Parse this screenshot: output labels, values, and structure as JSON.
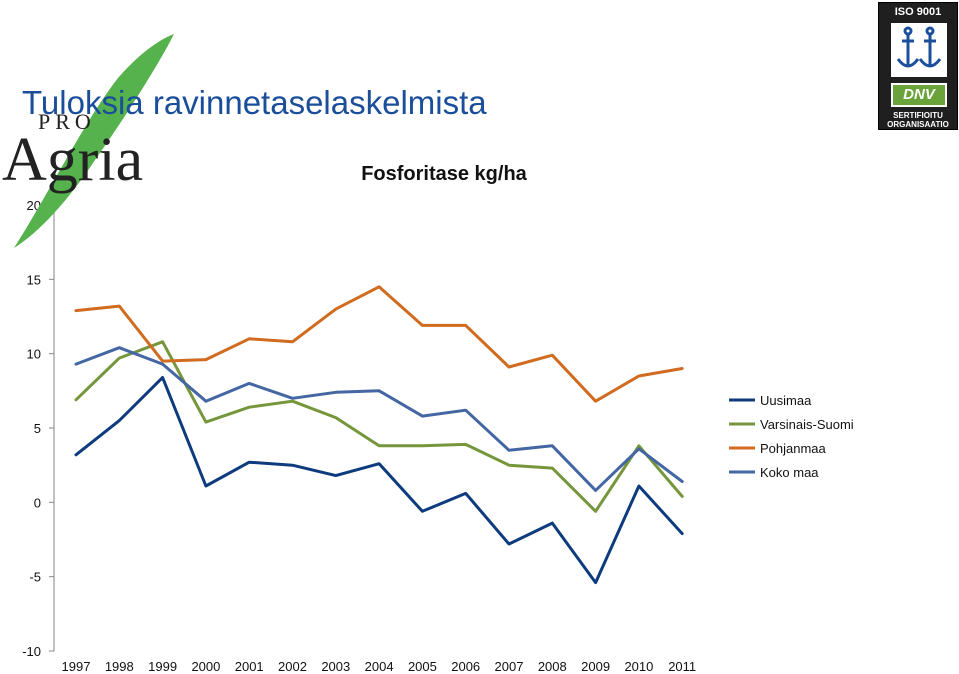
{
  "slide": {
    "title": "Tuloksia ravinnetaselaskelmista"
  },
  "logo": {
    "top_text": "PRO",
    "name": "Agria"
  },
  "certification": {
    "iso": "ISO 9001",
    "dnv": "DNV",
    "line1": "SERTIFIOITU",
    "line2": "ORGANISAATIO"
  },
  "chart_data": {
    "type": "line",
    "title": "Fosforitase kg/ha",
    "categories": [
      "1997",
      "1998",
      "1999",
      "2000",
      "2001",
      "2002",
      "2003",
      "2004",
      "2005",
      "2006",
      "2007",
      "2008",
      "2009",
      "2010",
      "2011"
    ],
    "y_ticks": [
      "20",
      "15",
      "10",
      "5",
      "0",
      "-5",
      "-10"
    ],
    "ylim": [
      -10,
      20
    ],
    "legend_position": "right",
    "grid": false,
    "series": [
      {
        "name": "Uusimaa",
        "color": "#0d3b7d",
        "values": [
          3.2,
          5.5,
          8.4,
          1.1,
          2.7,
          2.5,
          1.8,
          2.6,
          -0.6,
          0.6,
          -2.8,
          -1.4,
          -5.4,
          1.1,
          -2.1
        ]
      },
      {
        "name": "Varsinais-Suomi",
        "color": "#76963c",
        "values": [
          6.9,
          9.7,
          10.8,
          5.4,
          6.4,
          6.8,
          5.7,
          3.8,
          3.8,
          3.9,
          2.5,
          2.3,
          -0.6,
          3.8,
          0.4
        ]
      },
      {
        "name": "Pohjanmaa",
        "color": "#d06b1f",
        "values": [
          12.9,
          13.2,
          9.5,
          9.6,
          11.0,
          10.8,
          13.0,
          14.5,
          11.9,
          11.9,
          9.1,
          9.9,
          6.8,
          8.5,
          9.0
        ]
      },
      {
        "name": "Koko maa",
        "color": "#4466a3",
        "values": [
          9.3,
          10.4,
          9.3,
          6.8,
          8.0,
          7.0,
          7.4,
          7.5,
          5.8,
          6.2,
          3.5,
          3.8,
          0.8,
          3.6,
          1.4
        ]
      }
    ]
  }
}
